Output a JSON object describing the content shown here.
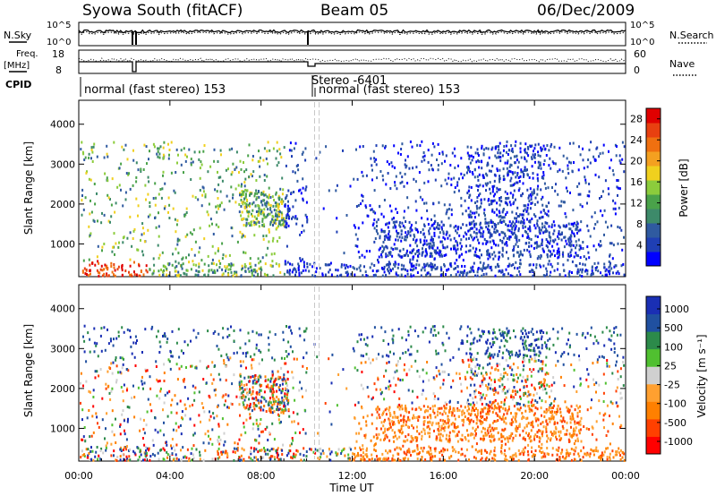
{
  "header": {
    "title": "Syowa South (fitACF)",
    "beam": "Beam 05",
    "date": "06/Dec/2009"
  },
  "top_panels": {
    "nsky_label": "N.Sky",
    "nsearch_label": "N.Search",
    "freq_label": "Freq.",
    "freq_unit": "[MHz]",
    "nave_label": "Nave",
    "cpid_label": "CPID",
    "left_ticks_noise": [
      "10^5",
      "10^0"
    ],
    "right_ticks_noise": [
      "10^5",
      "10^0"
    ],
    "left_ticks_freq": [
      "18",
      "8"
    ],
    "right_ticks_nave": [
      "60",
      "0"
    ],
    "cpid_entries": [
      {
        "text": "normal (fast stereo) 153"
      },
      {
        "text": "Stereo -6401"
      },
      {
        "text": "normal (fast stereo) 153"
      }
    ]
  },
  "colors": {
    "power_scale": [
      "#0000ff",
      "#1f3fb4",
      "#2f5aa0",
      "#3d8a6a",
      "#4aa24a",
      "#8ccc3c",
      "#f0d01e",
      "#f4a020",
      "#f07010",
      "#e84010",
      "#e00000"
    ],
    "velocity_scale": [
      "#ff0000",
      "#ff4000",
      "#ff8000",
      "#ffa030",
      "#d0d0d0",
      "#50c030",
      "#2c8a4a",
      "#2050a0",
      "#1a2fb4"
    ]
  },
  "chart_data": [
    {
      "type": "heatmap",
      "name": "power",
      "ylabel": "Slant Range [km]",
      "y_ticks": [
        "1000",
        "2000",
        "3000",
        "4000"
      ],
      "ylim": [
        180,
        4600
      ],
      "colorbar_label": "Power [dB]",
      "colorbar_ticks": [
        "4",
        "8",
        "12",
        "16",
        "20",
        "24",
        "28"
      ],
      "colorbar_range": [
        0,
        30
      ]
    },
    {
      "type": "heatmap",
      "name": "velocity",
      "ylabel": "Slant Range [km]",
      "y_ticks": [
        "1000",
        "2000",
        "3000",
        "4000"
      ],
      "ylim": [
        180,
        4600
      ],
      "xlabel": "Time UT",
      "x_ticks": [
        "00:00",
        "04:00",
        "08:00",
        "12:00",
        "16:00",
        "20:00",
        "00:00"
      ],
      "xlim_hours": [
        0,
        24
      ],
      "colorbar_label": "Velocity [m s⁻¹]",
      "colorbar_ticks": [
        "1000",
        "500",
        "100",
        "25",
        "-25",
        "-100",
        "-500",
        "-1000"
      ]
    }
  ]
}
